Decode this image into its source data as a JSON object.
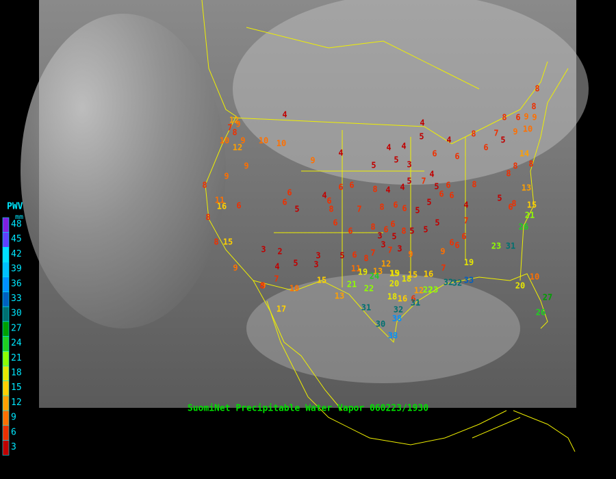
{
  "title": "SuomiNet Precipitable Water Vapor 060223/1930",
  "legend": {
    "title": "PWV",
    "unit": "mm",
    "levels": [
      48,
      45,
      42,
      39,
      36,
      33,
      30,
      27,
      24,
      21,
      18,
      15,
      12,
      9,
      6,
      3
    ],
    "colors": [
      "#8020e0",
      "#6040ff",
      "#00e0ff",
      "#00c0ff",
      "#0090ff",
      "#0060c0",
      "#007070",
      "#00a000",
      "#20d020",
      "#90ff00",
      "#e8e800",
      "#ffd000",
      "#ffa000",
      "#ff7000",
      "#ee3000",
      "#c00000"
    ]
  },
  "stations": [
    4,
    12,
    7,
    9,
    8,
    9,
    10,
    12,
    10,
    10,
    9,
    9,
    4,
    9,
    8,
    6,
    6,
    6,
    11,
    16,
    6,
    8,
    6,
    5,
    4,
    8,
    6,
    6,
    6,
    7,
    5,
    4,
    4,
    5,
    3,
    4,
    5,
    4,
    6,
    6,
    8,
    6,
    8,
    6,
    9,
    8,
    8,
    9,
    7,
    5,
    9,
    10,
    14,
    8,
    8,
    8,
    13,
    8,
    6,
    4,
    7,
    5,
    4,
    4,
    8,
    6,
    8,
    6,
    5,
    5,
    5,
    6,
    6,
    4,
    5,
    6,
    8,
    15,
    21,
    26,
    7,
    5,
    6,
    6,
    9,
    6,
    23,
    31,
    19,
    7,
    16,
    15,
    13,
    12,
    9,
    8,
    7,
    3,
    5,
    6,
    6,
    8,
    5,
    5,
    8,
    3,
    7,
    3,
    8,
    15,
    3,
    2,
    4,
    5,
    3,
    3,
    5,
    6,
    11,
    19,
    24,
    22,
    21,
    15,
    10,
    9,
    7,
    8,
    9,
    17,
    13,
    19,
    20,
    18,
    15,
    18,
    16,
    6,
    12,
    22,
    23,
    32,
    32,
    33,
    31,
    30,
    32,
    38,
    38,
    31,
    10,
    20,
    27,
    26
  ]
}
